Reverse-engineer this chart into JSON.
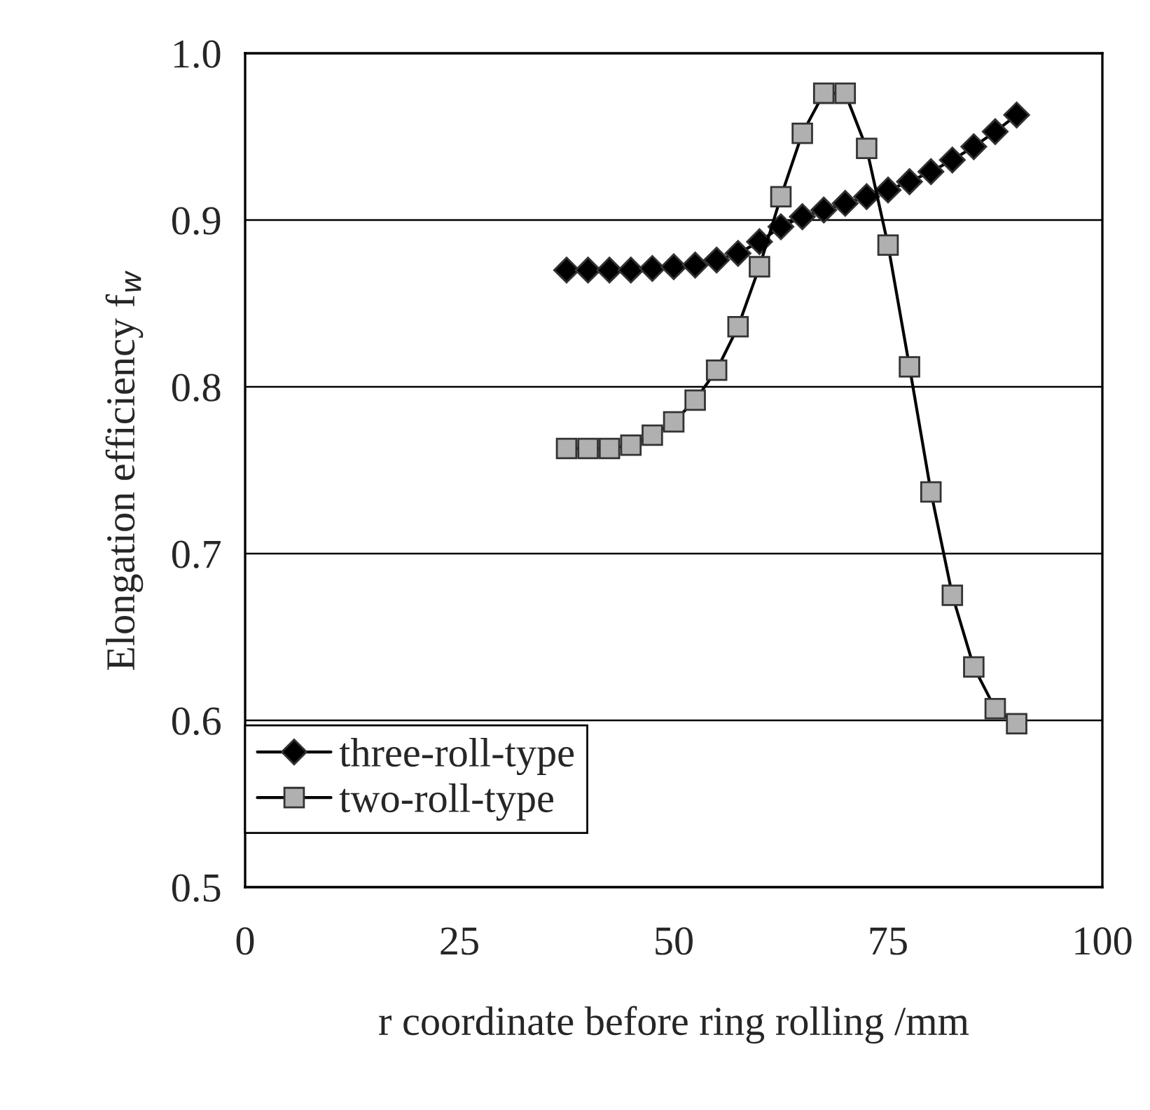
{
  "chart_data": {
    "type": "line",
    "xlabel": "r coordinate before ring rolling /mm",
    "ylabel": "Elongation efficiency f$_{w}$",
    "xlim": [
      0,
      100
    ],
    "xticks": [
      0,
      25,
      50,
      75,
      100
    ],
    "ylim": [
      0.5,
      1.0
    ],
    "yticks": [
      {
        "value": 0.5,
        "label": "0.5"
      },
      {
        "value": 0.6,
        "label": "0.6"
      },
      {
        "value": 0.7,
        "label": "0.7"
      },
      {
        "value": 0.8,
        "label": "0.8"
      },
      {
        "value": 0.9,
        "label": "0.9"
      },
      {
        "value": 1.0,
        "label": "1.0"
      }
    ],
    "grid": "y",
    "legend": "bottom left",
    "line_style": "solid",
    "series": [
      {
        "name": "three-roll-type",
        "color": "#000000",
        "marker": "diamond",
        "x": [
          37.5,
          40,
          42.5,
          45,
          47.5,
          50,
          52.5,
          55,
          57.5,
          60,
          62.5,
          65,
          67.5,
          70,
          72.5,
          75,
          77.5,
          80,
          82.5,
          85,
          87.5,
          90
        ],
        "values": [
          0.87,
          0.87,
          0.87,
          0.87,
          0.871,
          0.872,
          0.873,
          0.876,
          0.88,
          0.887,
          0.896,
          0.902,
          0.906,
          0.91,
          0.914,
          0.918,
          0.923,
          0.929,
          0.936,
          0.944,
          0.953,
          0.963
        ]
      },
      {
        "name": "two-roll-type",
        "color": "#b0b0b0",
        "marker": "square",
        "x": [
          37.5,
          40,
          42.5,
          45,
          47.5,
          50,
          52.5,
          55,
          57.5,
          60,
          62.5,
          65,
          67.5,
          70,
          72.5,
          75,
          77.5,
          80,
          82.5,
          85,
          87.5,
          90
        ],
        "values": [
          0.763,
          0.763,
          0.763,
          0.765,
          0.771,
          0.779,
          0.792,
          0.81,
          0.836,
          0.872,
          0.914,
          0.952,
          0.976,
          0.976,
          0.943,
          0.885,
          0.812,
          0.737,
          0.675,
          0.632,
          0.607,
          0.598
        ]
      }
    ]
  }
}
